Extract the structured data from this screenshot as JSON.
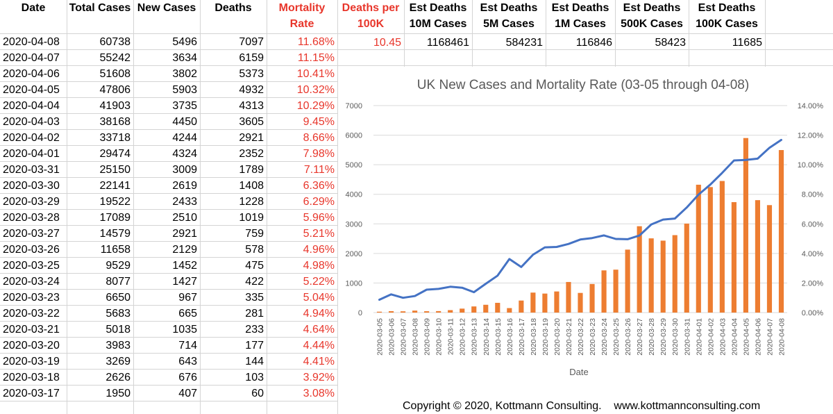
{
  "headers": {
    "date": "Date",
    "total_cases": "Total Cases",
    "new_cases": "New Cases",
    "deaths": "Deaths",
    "mortality_line1": "Mortality",
    "mortality_line2": "Rate",
    "deaths_per_line1": "Deaths per",
    "deaths_per_line2": "100K",
    "est10m_line1": "Est Deaths",
    "est10m_line2": "10M Cases",
    "est5m_line1": "Est Deaths",
    "est5m_line2": "5M Cases",
    "est1m_line1": "Est Deaths",
    "est1m_line2": "1M Cases",
    "est500k_line1": "Est Deaths",
    "est500k_line2": "500K Cases",
    "est100k_line1": "Est Deaths",
    "est100k_line2": "100K Cases"
  },
  "estimates": {
    "deaths_per_100k": "10.45",
    "est_10m": "1168461",
    "est_5m": "584231",
    "est_1m": "116846",
    "est_500k": "58423",
    "est_100k": "11685"
  },
  "rows": [
    {
      "date": "2020-04-08",
      "total": "60738",
      "new": "5496",
      "deaths": "7097",
      "rate": "11.68%"
    },
    {
      "date": "2020-04-07",
      "total": "55242",
      "new": "3634",
      "deaths": "6159",
      "rate": "11.15%"
    },
    {
      "date": "2020-04-06",
      "total": "51608",
      "new": "3802",
      "deaths": "5373",
      "rate": "10.41%"
    },
    {
      "date": "2020-04-05",
      "total": "47806",
      "new": "5903",
      "deaths": "4932",
      "rate": "10.32%"
    },
    {
      "date": "2020-04-04",
      "total": "41903",
      "new": "3735",
      "deaths": "4313",
      "rate": "10.29%"
    },
    {
      "date": "2020-04-03",
      "total": "38168",
      "new": "4450",
      "deaths": "3605",
      "rate": "9.45%"
    },
    {
      "date": "2020-04-02",
      "total": "33718",
      "new": "4244",
      "deaths": "2921",
      "rate": "8.66%"
    },
    {
      "date": "2020-04-01",
      "total": "29474",
      "new": "4324",
      "deaths": "2352",
      "rate": "7.98%"
    },
    {
      "date": "2020-03-31",
      "total": "25150",
      "new": "3009",
      "deaths": "1789",
      "rate": "7.11%"
    },
    {
      "date": "2020-03-30",
      "total": "22141",
      "new": "2619",
      "deaths": "1408",
      "rate": "6.36%"
    },
    {
      "date": "2020-03-29",
      "total": "19522",
      "new": "2433",
      "deaths": "1228",
      "rate": "6.29%"
    },
    {
      "date": "2020-03-28",
      "total": "17089",
      "new": "2510",
      "deaths": "1019",
      "rate": "5.96%"
    },
    {
      "date": "2020-03-27",
      "total": "14579",
      "new": "2921",
      "deaths": "759",
      "rate": "5.21%"
    },
    {
      "date": "2020-03-26",
      "total": "11658",
      "new": "2129",
      "deaths": "578",
      "rate": "4.96%"
    },
    {
      "date": "2020-03-25",
      "total": "9529",
      "new": "1452",
      "deaths": "475",
      "rate": "4.98%"
    },
    {
      "date": "2020-03-24",
      "total": "8077",
      "new": "1427",
      "deaths": "422",
      "rate": "5.22%"
    },
    {
      "date": "2020-03-23",
      "total": "6650",
      "new": "967",
      "deaths": "335",
      "rate": "5.04%"
    },
    {
      "date": "2020-03-22",
      "total": "5683",
      "new": "665",
      "deaths": "281",
      "rate": "4.94%"
    },
    {
      "date": "2020-03-21",
      "total": "5018",
      "new": "1035",
      "deaths": "233",
      "rate": "4.64%"
    },
    {
      "date": "2020-03-20",
      "total": "3983",
      "new": "714",
      "deaths": "177",
      "rate": "4.44%"
    },
    {
      "date": "2020-03-19",
      "total": "3269",
      "new": "643",
      "deaths": "144",
      "rate": "4.41%"
    },
    {
      "date": "2020-03-18",
      "total": "2626",
      "new": "676",
      "deaths": "103",
      "rate": "3.92%"
    },
    {
      "date": "2020-03-17",
      "total": "1950",
      "new": "407",
      "deaths": "60",
      "rate": "3.08%"
    }
  ],
  "colors": {
    "bar": "#ed7d31",
    "line": "#4472c4",
    "red_text": "#e8362b",
    "grid": "#d9d9d9"
  },
  "copyright": "Copyright © 2020, Kottmann Consulting.    www.kottmannconsulting.com",
  "chart_data": {
    "type": "bar",
    "title": "UK New Cases and Mortality Rate (03-05 through 04-08)",
    "xlabel": "Date",
    "ylabel": "",
    "categories": [
      "2020-03-05",
      "2020-03-06",
      "2020-03-07",
      "2020-03-08",
      "2020-03-09",
      "2020-03-10",
      "2020-03-11",
      "2020-03-12",
      "2020-03-13",
      "2020-03-14",
      "2020-03-15",
      "2020-03-16",
      "2020-03-17",
      "2020-03-18",
      "2020-03-19",
      "2020-03-20",
      "2020-03-21",
      "2020-03-22",
      "2020-03-23",
      "2020-03-24",
      "2020-03-25",
      "2020-03-26",
      "2020-03-27",
      "2020-03-28",
      "2020-03-29",
      "2020-03-30",
      "2020-03-31",
      "2020-04-01",
      "2020-04-02",
      "2020-04-03",
      "2020-04-04",
      "2020-04-05",
      "2020-04-06",
      "2020-04-07",
      "2020-04-08"
    ],
    "series": [
      {
        "values": [
          30,
          48,
          43,
          67,
          46,
          50,
          83,
          134,
          208,
          264,
          330,
          152,
          407,
          676,
          643,
          714,
          1035,
          665,
          967,
          1427,
          1452,
          2129,
          2921,
          2510,
          2433,
          2619,
          3009,
          4324,
          4244,
          4450,
          3735,
          5903,
          3802,
          3634,
          5496
        ]
      },
      {
        "values": [
          0.87,
          1.23,
          1.0,
          1.12,
          1.55,
          1.6,
          1.75,
          1.68,
          1.38,
          1.95,
          2.5,
          3.62,
          3.08,
          3.92,
          4.41,
          4.44,
          4.64,
          4.94,
          5.04,
          5.22,
          4.98,
          4.96,
          5.21,
          5.96,
          6.29,
          6.36,
          7.11,
          7.98,
          8.66,
          9.45,
          10.29,
          10.32,
          10.41,
          11.15,
          11.68
        ]
      }
    ],
    "ylim": [
      0,
      7000
    ],
    "y_ticks": [
      "0",
      "1000",
      "2000",
      "3000",
      "4000",
      "5000",
      "6000",
      "7000"
    ],
    "y2lim": [
      0,
      14
    ],
    "y2_ticks": [
      "0.00%",
      "2.00%",
      "4.00%",
      "6.00%",
      "8.00%",
      "10.00%",
      "12.00%",
      "14.00%"
    ],
    "grid": true,
    "legend": "none"
  }
}
